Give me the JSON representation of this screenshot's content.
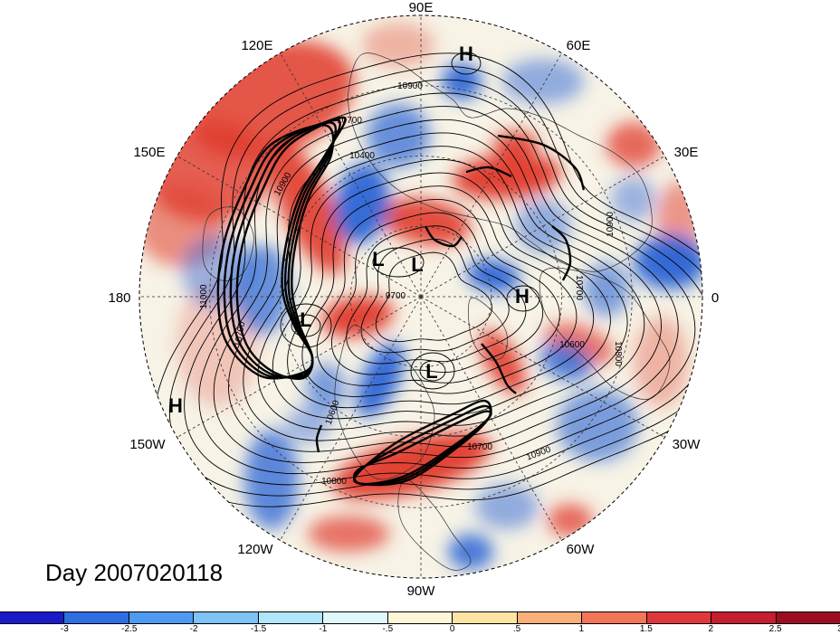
{
  "map": {
    "projection": "north-polar-stereographic",
    "longitude_labels": {
      "top": "90E",
      "top_right": "60E",
      "upper_right": "30E",
      "right": "0",
      "lower_right": "30W",
      "bottom_right": "60W",
      "bottom": "90W",
      "bottom_left": "120W",
      "lower_left": "150W",
      "left": "180",
      "upper_left": "150E",
      "top_left": "120E"
    },
    "pressure_centers": [
      {
        "type": "H",
        "label": "H"
      },
      {
        "type": "L",
        "label": "L"
      },
      {
        "type": "L",
        "label": "L"
      },
      {
        "type": "L",
        "label": "L"
      },
      {
        "type": "H",
        "label": "H"
      },
      {
        "type": "L",
        "label": "L"
      },
      {
        "type": "H",
        "label": "H"
      }
    ],
    "contour_labels": [
      "10900",
      "10700",
      "10400",
      "10900",
      "11000",
      "9700",
      "10700",
      "10600",
      "10800",
      "10900",
      "10700",
      "10800",
      "10600",
      "10900",
      "10700"
    ],
    "anomaly_colors": {
      "positive": "#e03a2c",
      "negative": "#2a64d6",
      "neutral": "#f7f3e6"
    }
  },
  "title": "Day 2007020118",
  "colorbar": {
    "colors": [
      "#1a1ac8",
      "#2e6ee0",
      "#4d9af0",
      "#7ec2f6",
      "#b0e6fb",
      "#e0f8fc",
      "#fdf6d8",
      "#fde3a4",
      "#f8b07a",
      "#f27658",
      "#e0383a",
      "#c41e30",
      "#9a0d22"
    ],
    "ticks": [
      "-3",
      "-2.5",
      "-2",
      "-1.5",
      "-1",
      "-.5",
      "0",
      ".5",
      "1",
      "1.5",
      "2",
      "2.5",
      "3"
    ]
  }
}
